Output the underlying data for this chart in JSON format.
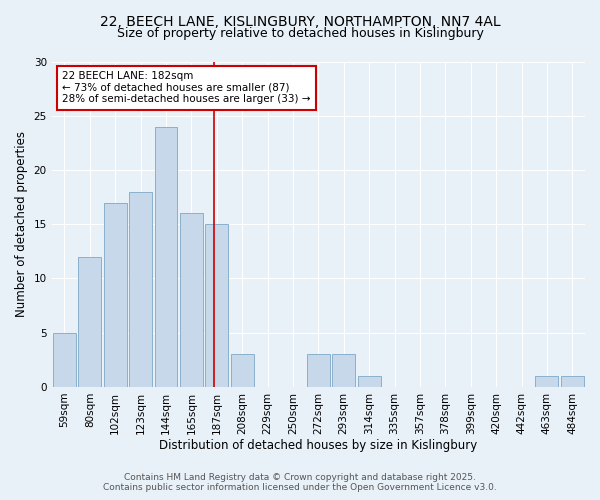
{
  "title_line1": "22, BEECH LANE, KISLINGBURY, NORTHAMPTON, NN7 4AL",
  "title_line2": "Size of property relative to detached houses in Kislingbury",
  "xlabel": "Distribution of detached houses by size in Kislingbury",
  "ylabel": "Number of detached properties",
  "bar_labels": [
    "59sqm",
    "80sqm",
    "102sqm",
    "123sqm",
    "144sqm",
    "165sqm",
    "187sqm",
    "208sqm",
    "229sqm",
    "250sqm",
    "272sqm",
    "293sqm",
    "314sqm",
    "335sqm",
    "357sqm",
    "378sqm",
    "399sqm",
    "420sqm",
    "442sqm",
    "463sqm",
    "484sqm"
  ],
  "bar_values": [
    5,
    12,
    17,
    18,
    24,
    16,
    15,
    3,
    0,
    0,
    3,
    3,
    1,
    0,
    0,
    0,
    0,
    0,
    0,
    1,
    1
  ],
  "bar_color": "#c8d8eb",
  "bar_edgecolor": "#8ab0cc",
  "vline_x": 5.9,
  "vline_color": "#cc0000",
  "annotation_text": "22 BEECH LANE: 182sqm\n← 73% of detached houses are smaller (87)\n28% of semi-detached houses are larger (33) →",
  "annotation_box_color": "#ffffff",
  "annotation_box_edgecolor": "#cc0000",
  "ylim": [
    0,
    30
  ],
  "yticks": [
    0,
    5,
    10,
    15,
    20,
    25,
    30
  ],
  "footer_line1": "Contains HM Land Registry data © Crown copyright and database right 2025.",
  "footer_line2": "Contains public sector information licensed under the Open Government Licence v3.0.",
  "bg_color": "#e8f0f8",
  "plot_bg_color": "#e8f0f8",
  "grid_color": "#ffffff",
  "title1_fontsize": 10,
  "title2_fontsize": 9,
  "axis_label_fontsize": 8.5,
  "tick_fontsize": 7.5,
  "annotation_fontsize": 7.5,
  "footer_fontsize": 6.5
}
